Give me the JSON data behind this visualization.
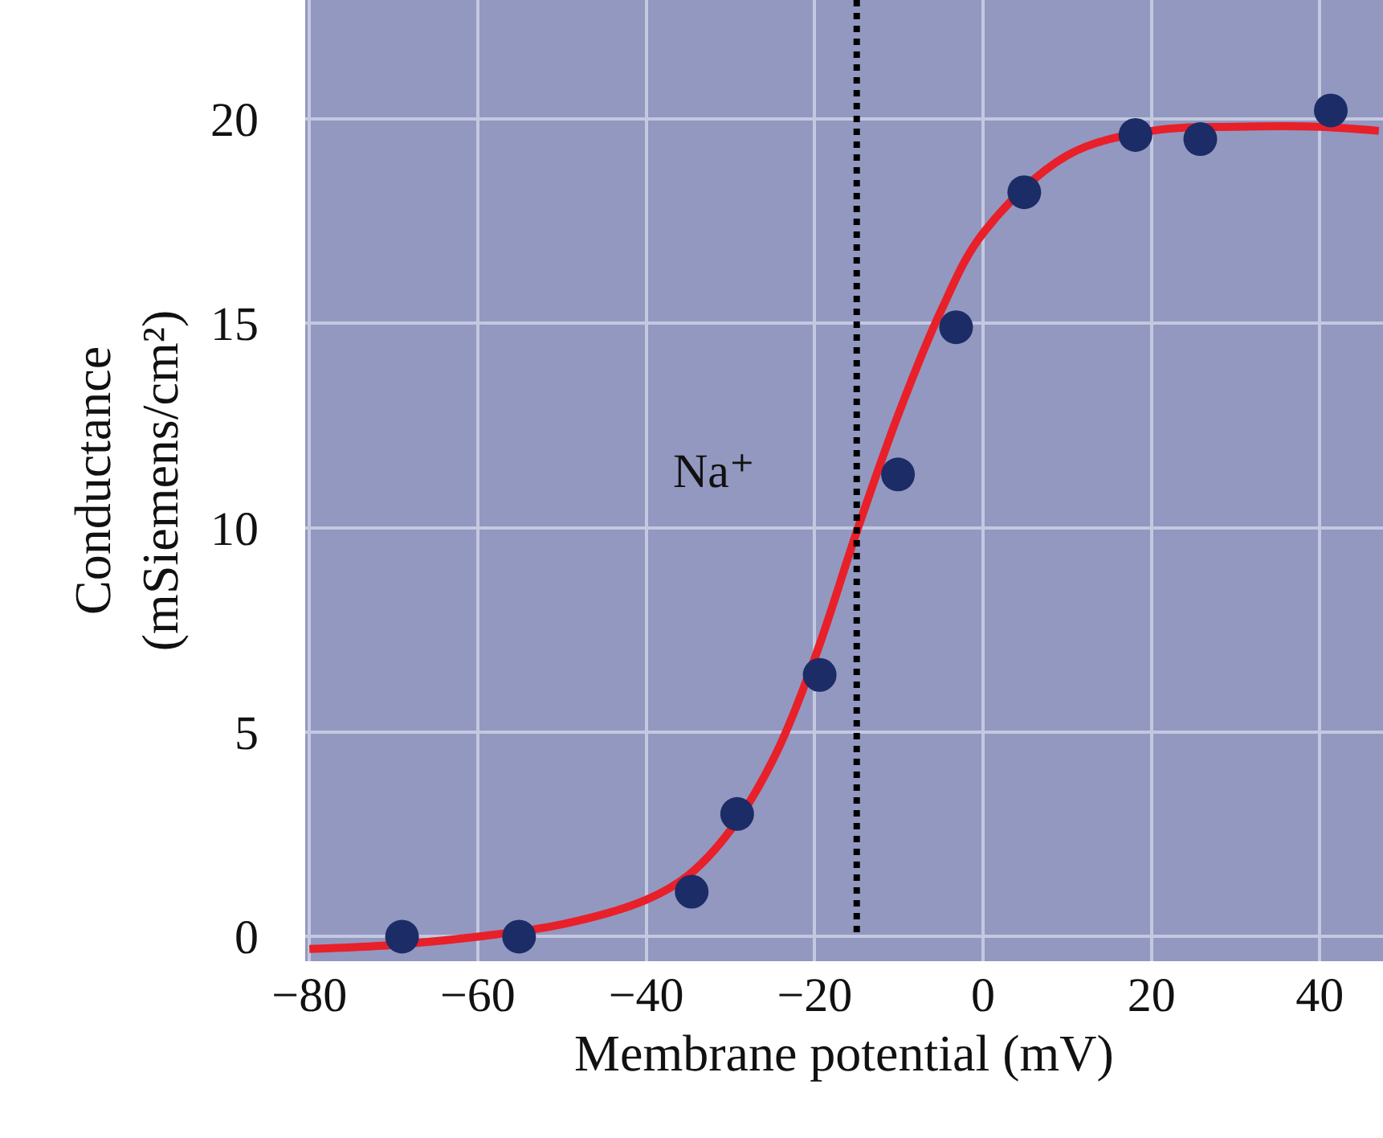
{
  "chart_data": {
    "type": "scatter",
    "xlabel": "Membrane potential (mV)",
    "ylabel": "Conductance\n(mSiemens/cm²)",
    "xlim": [
      -80.5,
      47.5
    ],
    "ylim": [
      -0.6,
      22.9
    ],
    "xticks": [
      -80,
      -60,
      -40,
      -20,
      0,
      20,
      40
    ],
    "yticks": [
      0,
      5,
      10,
      15,
      20
    ],
    "grid": true,
    "marker": "circle",
    "series": [
      {
        "type": "line",
        "color": "#e8202a",
        "marker": "none",
        "x": [
          -80,
          -70,
          -60,
          -50,
          -40,
          -35,
          -30,
          -25,
          -20,
          -15,
          -10,
          -5,
          0,
          10,
          20,
          30,
          40,
          47
        ],
        "values": [
          -0.3,
          -0.2,
          0.0,
          0.3,
          0.9,
          1.5,
          2.6,
          4.3,
          6.8,
          9.9,
          12.8,
          15.3,
          17.2,
          19.1,
          19.7,
          19.8,
          19.8,
          19.7
        ]
      },
      {
        "color": "#1c2c66",
        "x": [
          -69,
          -55.1,
          -34.6,
          -29.2,
          -19.4,
          -10.1,
          -3.2,
          4.9,
          18.1,
          25.8,
          41.3
        ],
        "values": [
          0,
          0,
          1.1,
          3.0,
          6.4,
          11.3,
          14.9,
          18.2,
          19.6,
          19.5,
          20.2
        ]
      }
    ],
    "ref_lines": [
      {
        "axis": "x",
        "value": -15,
        "color": "#000000",
        "line_style": "dotted"
      }
    ],
    "annotations": [
      "Na⁺"
    ]
  }
}
